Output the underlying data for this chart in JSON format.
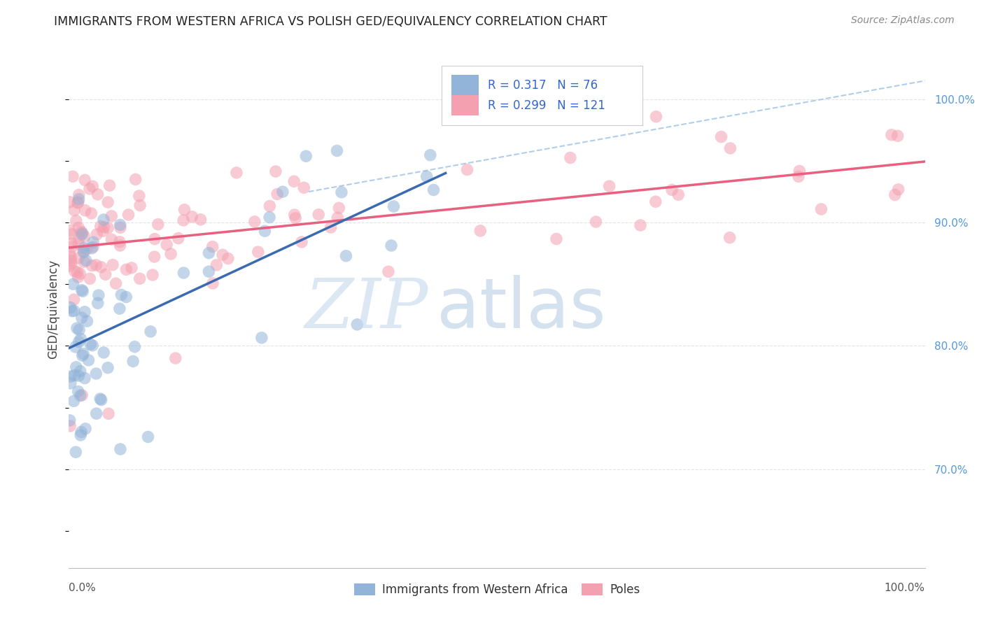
{
  "title": "IMMIGRANTS FROM WESTERN AFRICA VS POLISH GED/EQUIVALENCY CORRELATION CHART",
  "source": "Source: ZipAtlas.com",
  "ylabel": "GED/Equivalency",
  "legend_blue_r": "0.317",
  "legend_blue_n": "76",
  "legend_pink_r": "0.299",
  "legend_pink_n": "121",
  "legend_label1": "Immigrants from Western Africa",
  "legend_label2": "Poles",
  "blue_color": "#92B4D8",
  "pink_color": "#F4A0B0",
  "blue_line_color": "#3A6BB0",
  "pink_line_color": "#E86080",
  "dashed_line_color": "#A8C8E8",
  "background_color": "#FFFFFF",
  "grid_color": "#DDDDDD",
  "right_tick_color": "#5599DD",
  "xlim": [
    0.0,
    1.0
  ],
  "ylim": [
    0.62,
    1.04
  ],
  "yticks": [
    0.7,
    0.8,
    0.9,
    1.0
  ],
  "ytick_labels": [
    "70.0%",
    "80.0%",
    "90.0%",
    "100.0%"
  ]
}
